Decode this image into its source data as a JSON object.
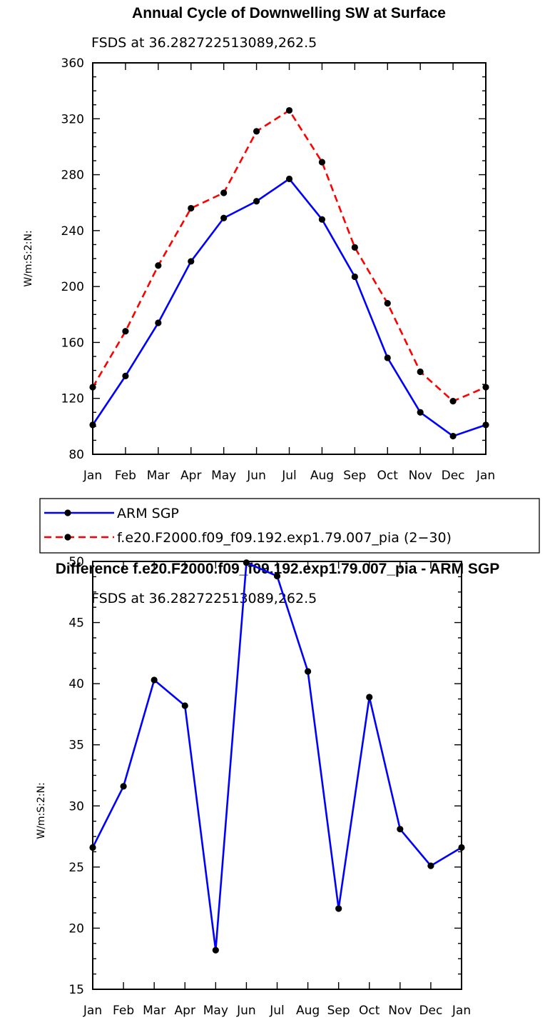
{
  "chart_data": [
    {
      "type": "line",
      "title": "Annual Cycle of Downwelling SW at Surface",
      "subtitle": "FSDS at 36.282722513089,262.5",
      "ylabel": "W/m:S:2:N:",
      "xlabel": "",
      "categories": [
        "Jan",
        "Feb",
        "Mar",
        "Apr",
        "May",
        "Jun",
        "Jul",
        "Aug",
        "Sep",
        "Oct",
        "Nov",
        "Dec",
        "Jan"
      ],
      "ylim": [
        80,
        360
      ],
      "yticks": [
        80,
        120,
        160,
        200,
        240,
        280,
        320,
        360
      ],
      "series": [
        {
          "name": "ARM SGP",
          "color": "#0000ff",
          "dash": "solid",
          "values": [
            101,
            136,
            174,
            218,
            249,
            261,
            277,
            248,
            207,
            149,
            110,
            93,
            101
          ]
        },
        {
          "name": "f.e20.F2000.f09_f09.192.exp1.79.007_pia (2−30)",
          "color": "#ff0000",
          "dash": "dashed",
          "values": [
            128,
            168,
            215,
            256,
            267,
            311,
            326,
            289,
            228,
            188,
            139,
            118,
            128
          ]
        }
      ]
    },
    {
      "type": "line",
      "title": "Difference f.e20.F2000.f09_f09.192.exp1.79.007_pia - ARM SGP",
      "subtitle": "FSDS at 36.282722513089,262.5",
      "ylabel": "W/m:S:2:N:",
      "xlabel": "",
      "categories": [
        "Jan",
        "Feb",
        "Mar",
        "Apr",
        "May",
        "Jun",
        "Jul",
        "Aug",
        "Sep",
        "Oct",
        "Nov",
        "Dec",
        "Jan"
      ],
      "ylim": [
        15,
        50
      ],
      "yticks": [
        15,
        20,
        25,
        30,
        35,
        40,
        45,
        50
      ],
      "series": [
        {
          "name": "Difference",
          "color": "#0000ff",
          "dash": "solid",
          "values": [
            26.6,
            31.6,
            40.3,
            38.2,
            18.2,
            49.9,
            48.8,
            41.0,
            21.6,
            38.9,
            28.1,
            25.1,
            26.6
          ]
        }
      ]
    }
  ]
}
